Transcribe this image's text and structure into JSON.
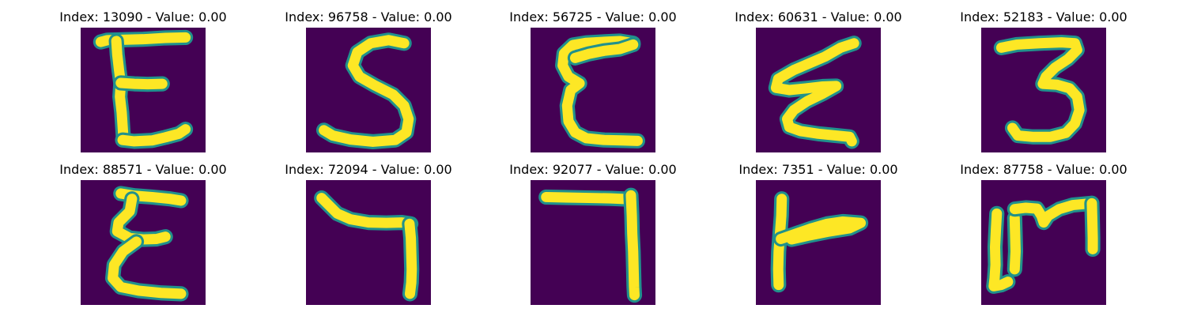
{
  "chart_data": {
    "type": "image-grid",
    "rows": 2,
    "cols": 5,
    "image_resolution": 28,
    "colormap": "viridis",
    "colors": {
      "background": "#440154",
      "mid": "#21918c",
      "stroke": "#fde725"
    },
    "panels": [
      {
        "title": "Index: 13090 - Value: 0.00",
        "index": 13090,
        "value": 0.0,
        "strokes": [
          [
            [
              4.5,
              3.2
            ],
            [
              6,
              2.8
            ],
            [
              10,
              2.7
            ],
            [
              14,
              2.6
            ],
            [
              19,
              2.3
            ],
            [
              23.5,
              2.2
            ]
          ],
          [
            [
              8,
              3.0
            ],
            [
              8.2,
              6
            ],
            [
              8.6,
              9.5
            ],
            [
              9.0,
              12.5
            ],
            [
              8.8,
              15.5
            ],
            [
              9.2,
              19
            ],
            [
              9.4,
              22
            ],
            [
              9.6,
              25
            ]
          ],
          [
            [
              9.0,
              12.4
            ],
            [
              12,
              12.6
            ],
            [
              15,
              12.7
            ],
            [
              18.3,
              12.6
            ]
          ],
          [
            [
              9.4,
              25.2
            ],
            [
              12,
              25.5
            ],
            [
              16,
              25.3
            ],
            [
              19,
              24.6
            ],
            [
              22,
              23.8
            ],
            [
              23.5,
              22.8
            ]
          ]
        ]
      },
      {
        "title": "Index: 96758 - Value: 0.00",
        "index": 96758,
        "value": 0.0,
        "strokes": [
          [
            [
              22,
              3.5
            ],
            [
              18.5,
              2.8
            ],
            [
              14.5,
              3.5
            ],
            [
              11.5,
              5.5
            ],
            [
              10.5,
              8.5
            ],
            [
              12,
              11
            ],
            [
              15.5,
              13
            ],
            [
              19.5,
              15
            ],
            [
              22,
              17.5
            ],
            [
              23,
              20.5
            ],
            [
              22.5,
              23.5
            ],
            [
              20,
              25.2
            ],
            [
              15,
              25.6
            ],
            [
              10,
              25.1
            ],
            [
              6,
              24.2
            ],
            [
              4,
              23
            ]
          ]
        ]
      },
      {
        "title": "Index: 56725 - Value: 0.00",
        "index": 56725,
        "value": 0.0,
        "strokes": [
          [
            [
              23,
              3.5
            ],
            [
              20,
              3.0
            ],
            [
              16,
              3.2
            ],
            [
              12.5,
              3.4
            ],
            [
              9.5,
              3.9
            ],
            [
              7.5,
              5.8
            ],
            [
              7.2,
              8.5
            ],
            [
              8.5,
              11
            ],
            [
              11,
              12.5
            ],
            [
              9,
              14
            ],
            [
              8.2,
              17.5
            ],
            [
              8.5,
              21
            ],
            [
              10,
              23.5
            ],
            [
              12.5,
              24.8
            ],
            [
              16.5,
              25.2
            ],
            [
              20.5,
              25.3
            ],
            [
              24,
              25.4
            ]
          ],
          [
            [
              10,
              6.8
            ],
            [
              13,
              5.9
            ],
            [
              16.5,
              5.2
            ],
            [
              20,
              4.8
            ],
            [
              23,
              3.8
            ]
          ]
        ]
      },
      {
        "title": "Index: 60631 - Value: 0.00",
        "index": 60631,
        "value": 0.0,
        "strokes": [
          [
            [
              22,
              3.5
            ],
            [
              19,
              4.5
            ],
            [
              15.5,
              6.5
            ],
            [
              12,
              8
            ],
            [
              8.5,
              9.5
            ],
            [
              5,
              11.5
            ],
            [
              4.5,
              13.5
            ],
            [
              7.5,
              14
            ],
            [
              11.5,
              13.6
            ],
            [
              15,
              13.2
            ],
            [
              18,
              13.1
            ],
            [
              15,
              14.8
            ],
            [
              11.5,
              16.5
            ],
            [
              8.5,
              18.5
            ],
            [
              7,
              20.5
            ],
            [
              7.5,
              22.3
            ],
            [
              10,
              23.2
            ],
            [
              14,
              23.8
            ],
            [
              18,
              24.2
            ],
            [
              21,
              24.5
            ],
            [
              21.5,
              25.5
            ]
          ]
        ]
      },
      {
        "title": "Index: 52183 - Value: 0.00",
        "index": 52183,
        "value": 0.0,
        "strokes": [
          [
            [
              4.5,
              4.5
            ],
            [
              8,
              3.8
            ],
            [
              13,
              3.5
            ],
            [
              18,
              3.3
            ],
            [
              21,
              3.5
            ],
            [
              21.5,
              5
            ],
            [
              19.5,
              7
            ],
            [
              16.5,
              9
            ],
            [
              14.5,
              11
            ],
            [
              13.8,
              12.6
            ],
            [
              17,
              12.8
            ],
            [
              19.8,
              13.6
            ],
            [
              21.5,
              15.5
            ],
            [
              22,
              18.5
            ],
            [
              21,
              21.5
            ],
            [
              19,
              23.6
            ],
            [
              15.5,
              24.5
            ],
            [
              11.5,
              24.5
            ],
            [
              8.2,
              24.2
            ],
            [
              7,
              22.5
            ]
          ]
        ]
      },
      {
        "title": "Index: 88571 - Value: 0.00",
        "index": 88571,
        "value": 0.0,
        "strokes": [
          [
            [
              9,
              3.0
            ],
            [
              12,
              3.5
            ],
            [
              16,
              3.8
            ],
            [
              20,
              4.2
            ],
            [
              22.5,
              4.6
            ]
          ],
          [
            [
              11.5,
              4.2
            ],
            [
              11,
              7
            ],
            [
              8.5,
              9.5
            ],
            [
              8.2,
              11.5
            ],
            [
              11,
              13
            ],
            [
              14,
              13.3
            ],
            [
              17,
              13.2
            ],
            [
              19,
              12.7
            ]
          ],
          [
            [
              12.5,
              13.8
            ],
            [
              9.5,
              16
            ],
            [
              7.5,
              19
            ],
            [
              7.2,
              22
            ],
            [
              9,
              24
            ],
            [
              13,
              24.8
            ],
            [
              18,
              25.3
            ],
            [
              22.5,
              25.5
            ]
          ]
        ]
      },
      {
        "title": "Index: 72094 - Value: 0.00",
        "index": 72094,
        "value": 0.0,
        "strokes": [
          [
            [
              3.5,
              4.0
            ],
            [
              5,
              5.5
            ],
            [
              7,
              7.5
            ],
            [
              10,
              8.8
            ],
            [
              14,
              9.5
            ],
            [
              18,
              9.6
            ],
            [
              21.5,
              9.5
            ],
            [
              23.5,
              9.8
            ]
          ],
          [
            [
              23.2,
              9.8
            ],
            [
              23.5,
              13
            ],
            [
              23.6,
              16.5
            ],
            [
              23.7,
              20
            ],
            [
              23.6,
              23
            ],
            [
              23.3,
              25.5
            ]
          ]
        ]
      },
      {
        "title": "Index: 92077 - Value: 0.00",
        "index": 92077,
        "value": 0.0,
        "strokes": [
          [
            [
              3.5,
              3.8
            ],
            [
              8,
              3.9
            ],
            [
              13,
              4.0
            ],
            [
              18,
              4.1
            ],
            [
              22.5,
              4.3
            ]
          ],
          [
            [
              22.5,
              3.4
            ],
            [
              22.7,
              8
            ],
            [
              22.8,
              12
            ],
            [
              23.0,
              16
            ],
            [
              23.1,
              20
            ],
            [
              23.2,
              24
            ],
            [
              23.3,
              25.8
            ]
          ]
        ]
      },
      {
        "title": "Index: 7351 - Value: 0.00",
        "index": 7351,
        "value": 0.0,
        "strokes": [
          [
            [
              5.8,
              4.2
            ],
            [
              5.7,
              8
            ],
            [
              5.4,
              12
            ],
            [
              5.1,
              16
            ],
            [
              5.0,
              20
            ],
            [
              5.1,
              23.5
            ]
          ],
          [
            [
              5.6,
              13.2
            ],
            [
              9,
              12.0
            ],
            [
              12.5,
              10.8
            ],
            [
              16,
              9.8
            ],
            [
              19.5,
              9.3
            ],
            [
              23.5,
              9.6
            ],
            [
              21,
              10.8
            ],
            [
              16,
              11.6
            ],
            [
              12,
              12.4
            ],
            [
              8,
              13.3
            ]
          ]
        ]
      },
      {
        "title": "Index: 87758 - Value: 0.00",
        "index": 87758,
        "value": 0.0,
        "strokes": [
          [
            [
              3.5,
              7.5
            ],
            [
              3.3,
              11
            ],
            [
              3.1,
              15
            ],
            [
              3.2,
              19
            ],
            [
              3.0,
              22
            ],
            [
              2.8,
              23.8
            ],
            [
              4.5,
              23.5
            ],
            [
              6,
              22.8
            ]
          ],
          [
            [
              7.5,
              8.5
            ],
            [
              7.6,
              12
            ],
            [
              7.7,
              16
            ],
            [
              7.5,
              20
            ]
          ],
          [
            [
              7.5,
              6.5
            ],
            [
              10,
              6.2
            ],
            [
              12.5,
              6.4
            ],
            [
              13.5,
              8
            ],
            [
              14,
              9.5
            ],
            [
              15,
              8
            ],
            [
              17.5,
              6.5
            ],
            [
              20.5,
              5.6
            ],
            [
              24.8,
              5.2
            ]
          ],
          [
            [
              24.8,
              5.2
            ],
            [
              24.9,
              9
            ],
            [
              25.0,
              13
            ],
            [
              25.0,
              15.5
            ]
          ]
        ]
      }
    ]
  }
}
